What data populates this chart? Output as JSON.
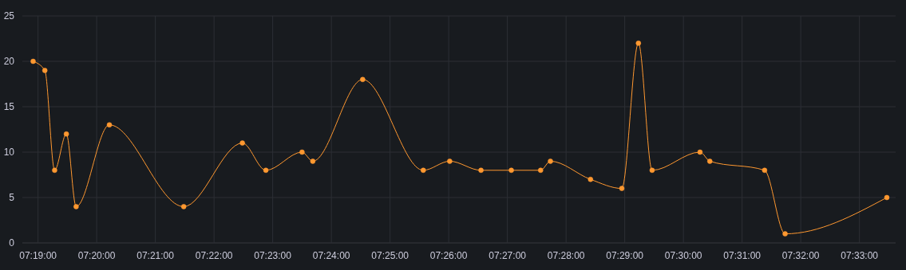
{
  "chart_data": {
    "type": "line",
    "x": [
      7.31528,
      7.31861,
      7.32139,
      7.32472,
      7.3275,
      7.33694,
      7.35806,
      7.37472,
      7.38139,
      7.39167,
      7.39472,
      7.40889,
      7.42611,
      7.43361,
      7.4425,
      7.45111,
      7.45944,
      7.46222,
      7.47361,
      7.4825,
      7.48722,
      7.49111,
      7.50472,
      7.5075,
      7.52306,
      7.52889,
      7.55778
    ],
    "series": [
      {
        "color": "#ff9830",
        "values": [
          20,
          19,
          8,
          12,
          4,
          13,
          4,
          11,
          8,
          10,
          9,
          18,
          8,
          9,
          8,
          8,
          8,
          9,
          7,
          6,
          22,
          8,
          10,
          9,
          8,
          1,
          5
        ]
      }
    ],
    "xlim": [
      7.31222,
      7.56028
    ],
    "xticks": [
      {
        "value": 7.31667,
        "label": "07:19:00"
      },
      {
        "value": 7.33333,
        "label": "07:20:00"
      },
      {
        "value": 7.35,
        "label": "07:21:00"
      },
      {
        "value": 7.36667,
        "label": "07:22:00"
      },
      {
        "value": 7.38333,
        "label": "07:23:00"
      },
      {
        "value": 7.4,
        "label": "07:24:00"
      },
      {
        "value": 7.41667,
        "label": "07:25:00"
      },
      {
        "value": 7.43333,
        "label": "07:26:00"
      },
      {
        "value": 7.45,
        "label": "07:27:00"
      },
      {
        "value": 7.46667,
        "label": "07:28:00"
      },
      {
        "value": 7.48333,
        "label": "07:29:00"
      },
      {
        "value": 7.5,
        "label": "07:30:00"
      },
      {
        "value": 7.51667,
        "label": "07:31:00"
      },
      {
        "value": 7.53333,
        "label": "07:32:00"
      },
      {
        "value": 7.55,
        "label": "07:33:00"
      }
    ],
    "ylim": [
      0,
      25
    ],
    "yticks": [
      0,
      5,
      10,
      15,
      20,
      25
    ],
    "grid": true,
    "marker": "circle",
    "line_style": "solid"
  }
}
